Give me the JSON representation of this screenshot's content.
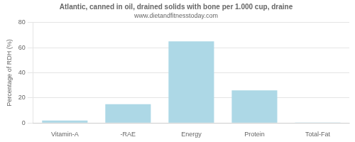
{
  "chart_data": {
    "type": "bar",
    "title": "Atlantic, canned in oil, drained solids with bone per 1.000 cup, draine",
    "subtitle": "www.dietandfitnesstoday.com",
    "categories": [
      "Vitamin-A",
      "-RAE",
      "Energy",
      "Protein",
      "Total-Fat"
    ],
    "values": [
      2,
      15,
      65,
      26,
      0.4
    ],
    "color": "#add8e6",
    "ylabel": "Percentage of RDH (%)",
    "ylim": [
      0,
      80
    ],
    "yticks": [
      0,
      20,
      40,
      60,
      80
    ],
    "grid": true
  }
}
